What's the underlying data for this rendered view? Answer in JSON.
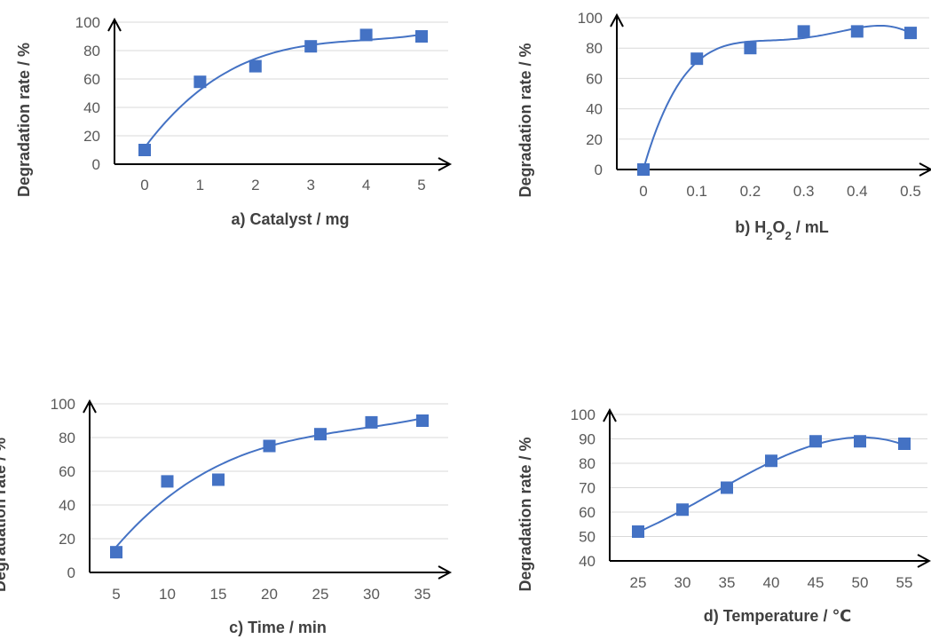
{
  "chart_data": [
    {
      "type": "scatter",
      "xlabel_main": "a) Catalyst / mg",
      "xlabel_sub": "",
      "xlabel_tail": "",
      "ylabel": "Degradation rate / %",
      "x_ticks": [
        "0",
        "1",
        "2",
        "3",
        "4",
        "5"
      ],
      "y_ticks": [
        "0",
        "20",
        "40",
        "60",
        "80",
        "100"
      ],
      "ylim": [
        0,
        100
      ],
      "grid": true,
      "series": [
        {
          "x": [
            0,
            1,
            2,
            3,
            4,
            5
          ],
          "y": [
            10,
            58,
            69,
            83,
            91,
            90
          ],
          "trendline": "smooth"
        }
      ]
    },
    {
      "type": "scatter",
      "xlabel_main": "b) H",
      "xlabel_sub": "2",
      "xlabel_mid": "O",
      "xlabel_sub2": "2",
      "xlabel_tail": " / mL",
      "ylabel": "Degradation rate / %",
      "x_ticks": [
        "0",
        "0.1",
        "0.2",
        "0.3",
        "0.4",
        "0.5"
      ],
      "y_ticks": [
        "0",
        "20",
        "40",
        "60",
        "80",
        "100"
      ],
      "ylim": [
        0,
        100
      ],
      "grid": true,
      "series": [
        {
          "x": [
            0,
            0.1,
            0.2,
            0.3,
            0.4,
            0.5
          ],
          "y": [
            0,
            73,
            80,
            91,
            91,
            90
          ],
          "trendline": "smooth"
        }
      ]
    },
    {
      "type": "scatter",
      "xlabel_main": "c) Time / min",
      "xlabel_sub": "",
      "xlabel_tail": "",
      "ylabel": "Degradation rate / %",
      "x_ticks": [
        "5",
        "10",
        "15",
        "20",
        "25",
        "30",
        "35"
      ],
      "y_ticks": [
        "0",
        "20",
        "40",
        "60",
        "80",
        "100"
      ],
      "ylim": [
        0,
        100
      ],
      "grid": true,
      "series": [
        {
          "x": [
            5,
            10,
            15,
            20,
            25,
            30,
            35
          ],
          "y": [
            12,
            54,
            55,
            75,
            82,
            89,
            90
          ],
          "trendline": "smooth"
        }
      ]
    },
    {
      "type": "scatter",
      "xlabel_main": "d) Temperature / ℃",
      "xlabel_sub": "",
      "xlabel_tail": "",
      "ylabel": "Degradation rate / %",
      "x_ticks": [
        "25",
        "30",
        "35",
        "40",
        "45",
        "50",
        "55"
      ],
      "y_ticks": [
        "40",
        "50",
        "60",
        "70",
        "80",
        "90",
        "100"
      ],
      "ylim": [
        40,
        100
      ],
      "grid": true,
      "series": [
        {
          "x": [
            25,
            30,
            35,
            40,
            45,
            50,
            55
          ],
          "y": [
            52,
            61,
            70,
            81,
            89,
            89,
            88
          ],
          "trendline": "smooth"
        }
      ]
    }
  ],
  "colors": {
    "marker": "#4472c4",
    "line": "#4472c4"
  }
}
